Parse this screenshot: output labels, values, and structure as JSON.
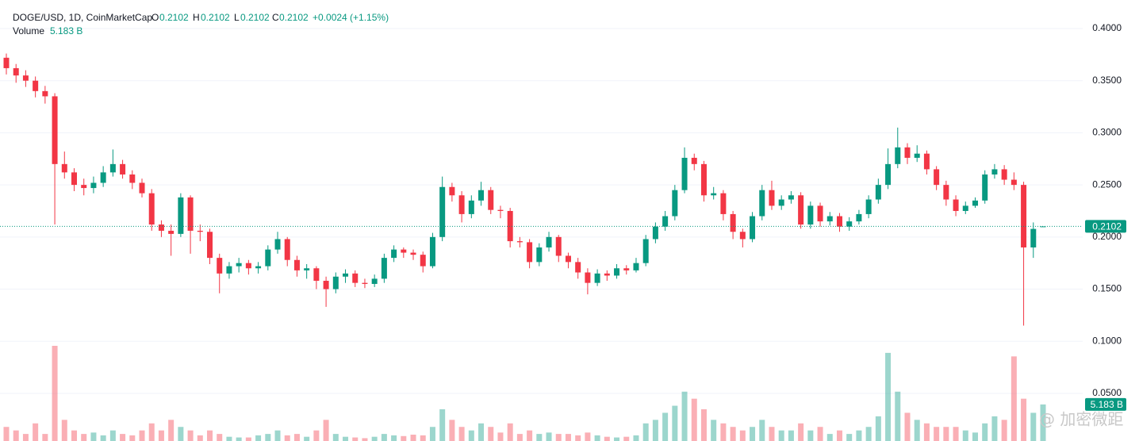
{
  "chart_data": {
    "type": "candlestick",
    "title": "DOGE/USD, 1D, CoinMarketCap",
    "ohlc_labels": [
      "O",
      "H",
      "L",
      "C"
    ],
    "change": "+0.0024 (+1.15%)",
    "volume_title": "Volume",
    "volume_label": "5.183 B",
    "up_color": "#089981",
    "down_color": "#f23645",
    "ylim": [
      0.0043,
      0.4274
    ],
    "yticks": [
      {
        "value": 0.05,
        "label": "0.0500"
      },
      {
        "value": 0.1,
        "label": "0.1000"
      },
      {
        "value": 0.15,
        "label": "0.1500"
      },
      {
        "value": 0.2,
        "label": "0.2000"
      },
      {
        "value": 0.25,
        "label": "0.2500"
      },
      {
        "value": 0.3,
        "label": "0.3000"
      },
      {
        "value": 0.35,
        "label": "0.3500"
      },
      {
        "value": 0.4,
        "label": "0.4000"
      }
    ],
    "grid": true,
    "last_price": 0.2102,
    "open": [
      0.372,
      0.362,
      0.355,
      0.35,
      0.34,
      0.335,
      0.27,
      0.262,
      0.25,
      0.247,
      0.252,
      0.262,
      0.27,
      0.26,
      0.252,
      0.242,
      0.212,
      0.206,
      0.203,
      0.238,
      0.206,
      0.205,
      0.18,
      0.165,
      0.172,
      0.175,
      0.17,
      0.172,
      0.188,
      0.198,
      0.178,
      0.168,
      0.17,
      0.158,
      0.15,
      0.162,
      0.165,
      0.156,
      0.155,
      0.16,
      0.18,
      0.188,
      0.185,
      0.183,
      0.172,
      0.2,
      0.248,
      0.24,
      0.222,
      0.235,
      0.245,
      0.226,
      0.225,
      0.196,
      0.195,
      0.176,
      0.19,
      0.2,
      0.182,
      0.176,
      0.166,
      0.156,
      0.165,
      0.163,
      0.17,
      0.168,
      0.175,
      0.198,
      0.21,
      0.22,
      0.245,
      0.276,
      0.27,
      0.24,
      0.242,
      0.222,
      0.205,
      0.198,
      0.22,
      0.245,
      0.23,
      0.236,
      0.24,
      0.212,
      0.23,
      0.215,
      0.22,
      0.21,
      0.215,
      0.222,
      0.236,
      0.25,
      0.27,
      0.286,
      0.276,
      0.28,
      0.265,
      0.25,
      0.236,
      0.225,
      0.23,
      0.235,
      0.26,
      0.265,
      0.255,
      0.25,
      0.19,
      0.2102
    ],
    "high": [
      0.376,
      0.366,
      0.36,
      0.354,
      0.345,
      0.338,
      0.282,
      0.266,
      0.256,
      0.258,
      0.268,
      0.284,
      0.274,
      0.264,
      0.256,
      0.246,
      0.216,
      0.212,
      0.242,
      0.24,
      0.212,
      0.208,
      0.184,
      0.176,
      0.18,
      0.178,
      0.176,
      0.192,
      0.205,
      0.2,
      0.182,
      0.174,
      0.172,
      0.162,
      0.166,
      0.169,
      0.168,
      0.16,
      0.164,
      0.184,
      0.192,
      0.19,
      0.188,
      0.186,
      0.204,
      0.258,
      0.252,
      0.244,
      0.24,
      0.253,
      0.248,
      0.23,
      0.228,
      0.2,
      0.198,
      0.194,
      0.205,
      0.202,
      0.185,
      0.18,
      0.17,
      0.169,
      0.168,
      0.174,
      0.173,
      0.18,
      0.202,
      0.214,
      0.225,
      0.25,
      0.286,
      0.28,
      0.273,
      0.248,
      0.245,
      0.225,
      0.208,
      0.224,
      0.25,
      0.254,
      0.24,
      0.244,
      0.243,
      0.234,
      0.233,
      0.224,
      0.223,
      0.219,
      0.226,
      0.24,
      0.256,
      0.285,
      0.305,
      0.29,
      0.288,
      0.283,
      0.268,
      0.254,
      0.24,
      0.234,
      0.238,
      0.264,
      0.27,
      0.269,
      0.262,
      0.253,
      0.214,
      0.2102
    ],
    "low": [
      0.356,
      0.348,
      0.344,
      0.334,
      0.328,
      0.212,
      0.256,
      0.244,
      0.24,
      0.242,
      0.248,
      0.258,
      0.256,
      0.246,
      0.238,
      0.206,
      0.2,
      0.182,
      0.2,
      0.184,
      0.196,
      0.174,
      0.146,
      0.16,
      0.166,
      0.164,
      0.165,
      0.168,
      0.184,
      0.172,
      0.162,
      0.16,
      0.15,
      0.133,
      0.146,
      0.156,
      0.152,
      0.151,
      0.152,
      0.156,
      0.176,
      0.18,
      0.178,
      0.166,
      0.17,
      0.196,
      0.234,
      0.214,
      0.218,
      0.23,
      0.222,
      0.218,
      0.19,
      0.19,
      0.17,
      0.172,
      0.186,
      0.176,
      0.17,
      0.16,
      0.145,
      0.153,
      0.158,
      0.16,
      0.164,
      0.166,
      0.172,
      0.194,
      0.206,
      0.216,
      0.242,
      0.264,
      0.234,
      0.236,
      0.216,
      0.198,
      0.19,
      0.195,
      0.216,
      0.226,
      0.226,
      0.232,
      0.208,
      0.208,
      0.21,
      0.211,
      0.205,
      0.206,
      0.212,
      0.218,
      0.232,
      0.246,
      0.266,
      0.27,
      0.272,
      0.26,
      0.245,
      0.23,
      0.22,
      0.222,
      0.228,
      0.232,
      0.256,
      0.25,
      0.245,
      0.115,
      0.18,
      0.2102
    ],
    "close": [
      0.362,
      0.355,
      0.35,
      0.34,
      0.335,
      0.27,
      0.262,
      0.25,
      0.247,
      0.252,
      0.262,
      0.27,
      0.26,
      0.252,
      0.242,
      0.212,
      0.206,
      0.203,
      0.238,
      0.206,
      0.205,
      0.18,
      0.165,
      0.172,
      0.175,
      0.17,
      0.172,
      0.188,
      0.198,
      0.178,
      0.168,
      0.17,
      0.158,
      0.15,
      0.162,
      0.165,
      0.156,
      0.155,
      0.16,
      0.18,
      0.188,
      0.185,
      0.183,
      0.172,
      0.2,
      0.248,
      0.24,
      0.222,
      0.235,
      0.245,
      0.226,
      0.225,
      0.196,
      0.195,
      0.176,
      0.19,
      0.2,
      0.182,
      0.176,
      0.166,
      0.156,
      0.165,
      0.163,
      0.17,
      0.168,
      0.175,
      0.198,
      0.21,
      0.22,
      0.245,
      0.276,
      0.27,
      0.24,
      0.242,
      0.222,
      0.205,
      0.198,
      0.22,
      0.245,
      0.23,
      0.236,
      0.24,
      0.212,
      0.23,
      0.215,
      0.22,
      0.21,
      0.215,
      0.222,
      0.236,
      0.25,
      0.27,
      0.286,
      0.276,
      0.28,
      0.265,
      0.25,
      0.236,
      0.225,
      0.23,
      0.235,
      0.26,
      0.265,
      0.255,
      0.25,
      0.19,
      0.2078,
      0.2102
    ],
    "volume": [
      2.0,
      1.5,
      1.0,
      2.5,
      1.0,
      13.5,
      3.0,
      1.5,
      1.0,
      1.2,
      0.8,
      1.5,
      1.0,
      0.8,
      1.5,
      2.5,
      1.5,
      3.0,
      2.0,
      1.5,
      0.8,
      1.5,
      1.0,
      0.6,
      0.5,
      0.5,
      0.8,
      1.0,
      1.5,
      0.8,
      1.0,
      0.6,
      1.5,
      3.0,
      1.0,
      0.6,
      0.5,
      0.4,
      0.6,
      1.0,
      0.8,
      0.7,
      0.9,
      0.8,
      2.0,
      4.5,
      3.0,
      2.0,
      1.5,
      2.5,
      2.0,
      1.2,
      2.5,
      1.0,
      1.5,
      1.0,
      1.2,
      1.0,
      1.0,
      0.8,
      1.2,
      0.8,
      0.6,
      0.5,
      0.6,
      0.8,
      2.5,
      3.0,
      4.0,
      5.0,
      7.0,
      6.0,
      4.5,
      3.0,
      2.5,
      2.0,
      1.5,
      2.0,
      3.0,
      2.0,
      1.5,
      1.5,
      2.5,
      1.5,
      2.0,
      1.0,
      1.5,
      1.0,
      1.5,
      2.0,
      3.5,
      12.5,
      7.0,
      4.0,
      3.0,
      2.5,
      2.0,
      2.0,
      2.0,
      1.5,
      1.2,
      2.5,
      3.5,
      3.0,
      12.0,
      6.0,
      4.0,
      5.183
    ]
  },
  "watermark": "@ 加密微距"
}
